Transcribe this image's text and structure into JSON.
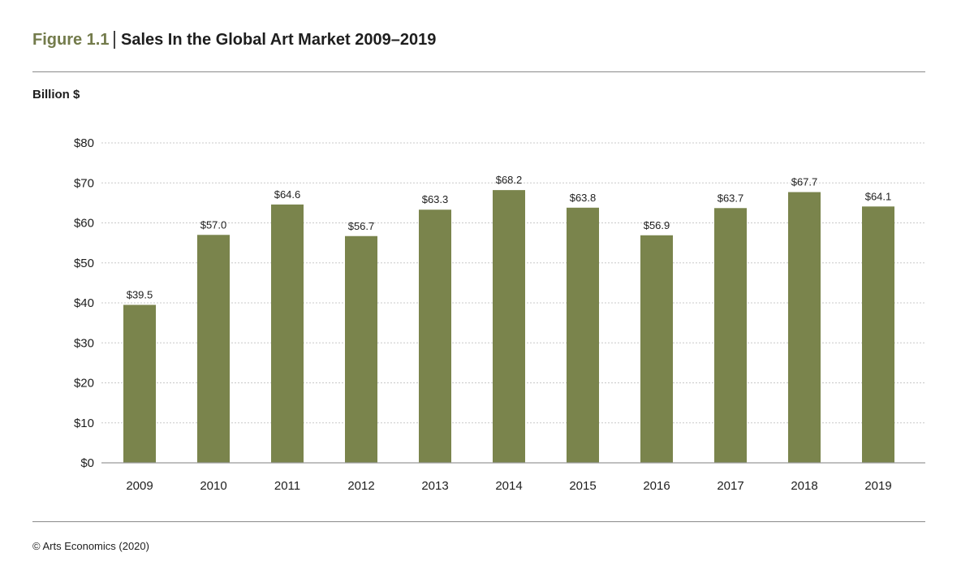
{
  "figure": {
    "label": "Figure 1.1",
    "title": "Sales In the Global Art Market 2009–2019"
  },
  "source": "© Arts Economics (2020)",
  "colors": {
    "bar": "#7a844c",
    "label_green": "#737b4b",
    "grid": "#c8c8c8",
    "axis": "#9a9a9a",
    "text": "#1e1e1e"
  },
  "chart_data": {
    "type": "bar",
    "title": "Sales In the Global Art Market 2009–2019",
    "ylabel": "Billion $",
    "xlabel": "",
    "categories": [
      "2009",
      "2010",
      "2011",
      "2012",
      "2013",
      "2014",
      "2015",
      "2016",
      "2017",
      "2018",
      "2019"
    ],
    "values": [
      39.5,
      57.0,
      64.6,
      56.7,
      63.3,
      68.2,
      63.8,
      56.9,
      63.7,
      67.7,
      64.1
    ],
    "value_labels": [
      "$39.5",
      "$57.0",
      "$64.6",
      "$56.7",
      "$63.3",
      "$68.2",
      "$63.8",
      "$56.9",
      "$63.7",
      "$67.7",
      "$64.1"
    ],
    "ylim": [
      0,
      80
    ],
    "yticks": [
      0,
      10,
      20,
      30,
      40,
      50,
      60,
      70,
      80
    ],
    "ytick_labels": [
      "$0",
      "$10",
      "$20",
      "$30",
      "$40",
      "$50",
      "$60",
      "$70",
      "$80"
    ],
    "grid": true,
    "legend": "none"
  }
}
